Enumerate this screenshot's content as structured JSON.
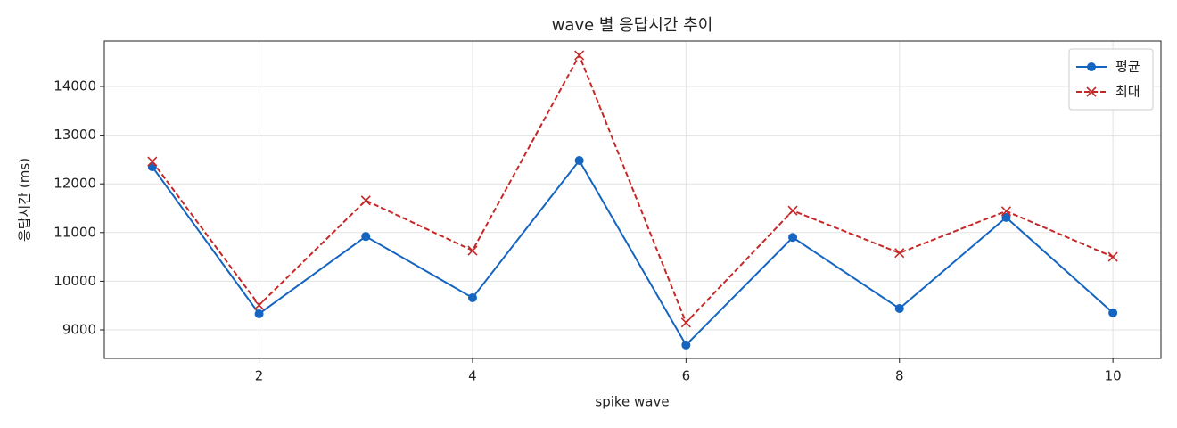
{
  "chart_data": {
    "type": "line",
    "title": "wave 별 응답시간 추이",
    "xlabel": "spike wave",
    "ylabel": "응답시간 (ms)",
    "x": [
      1,
      2,
      3,
      4,
      5,
      6,
      7,
      8,
      9,
      10
    ],
    "series": [
      {
        "name": "평균",
        "color": "#1565c0",
        "marker": "o",
        "linestyle": "solid",
        "values": [
          12350,
          9330,
          10920,
          9660,
          12480,
          8690,
          10900,
          9440,
          11310,
          9350
        ]
      },
      {
        "name": "최대",
        "color": "#c62828",
        "marker": "x",
        "linestyle": "dashed",
        "values": [
          12460,
          9510,
          11660,
          10630,
          14640,
          9150,
          11450,
          10580,
          11440,
          10500
        ]
      }
    ],
    "xlim": [
      0.55,
      10.45
    ],
    "ylim": [
      8414,
      14934
    ],
    "xticks": [
      2,
      4,
      6,
      8,
      10
    ],
    "yticks": [
      9000,
      10000,
      11000,
      12000,
      13000,
      14000
    ],
    "grid": true,
    "legend": "upper right"
  }
}
